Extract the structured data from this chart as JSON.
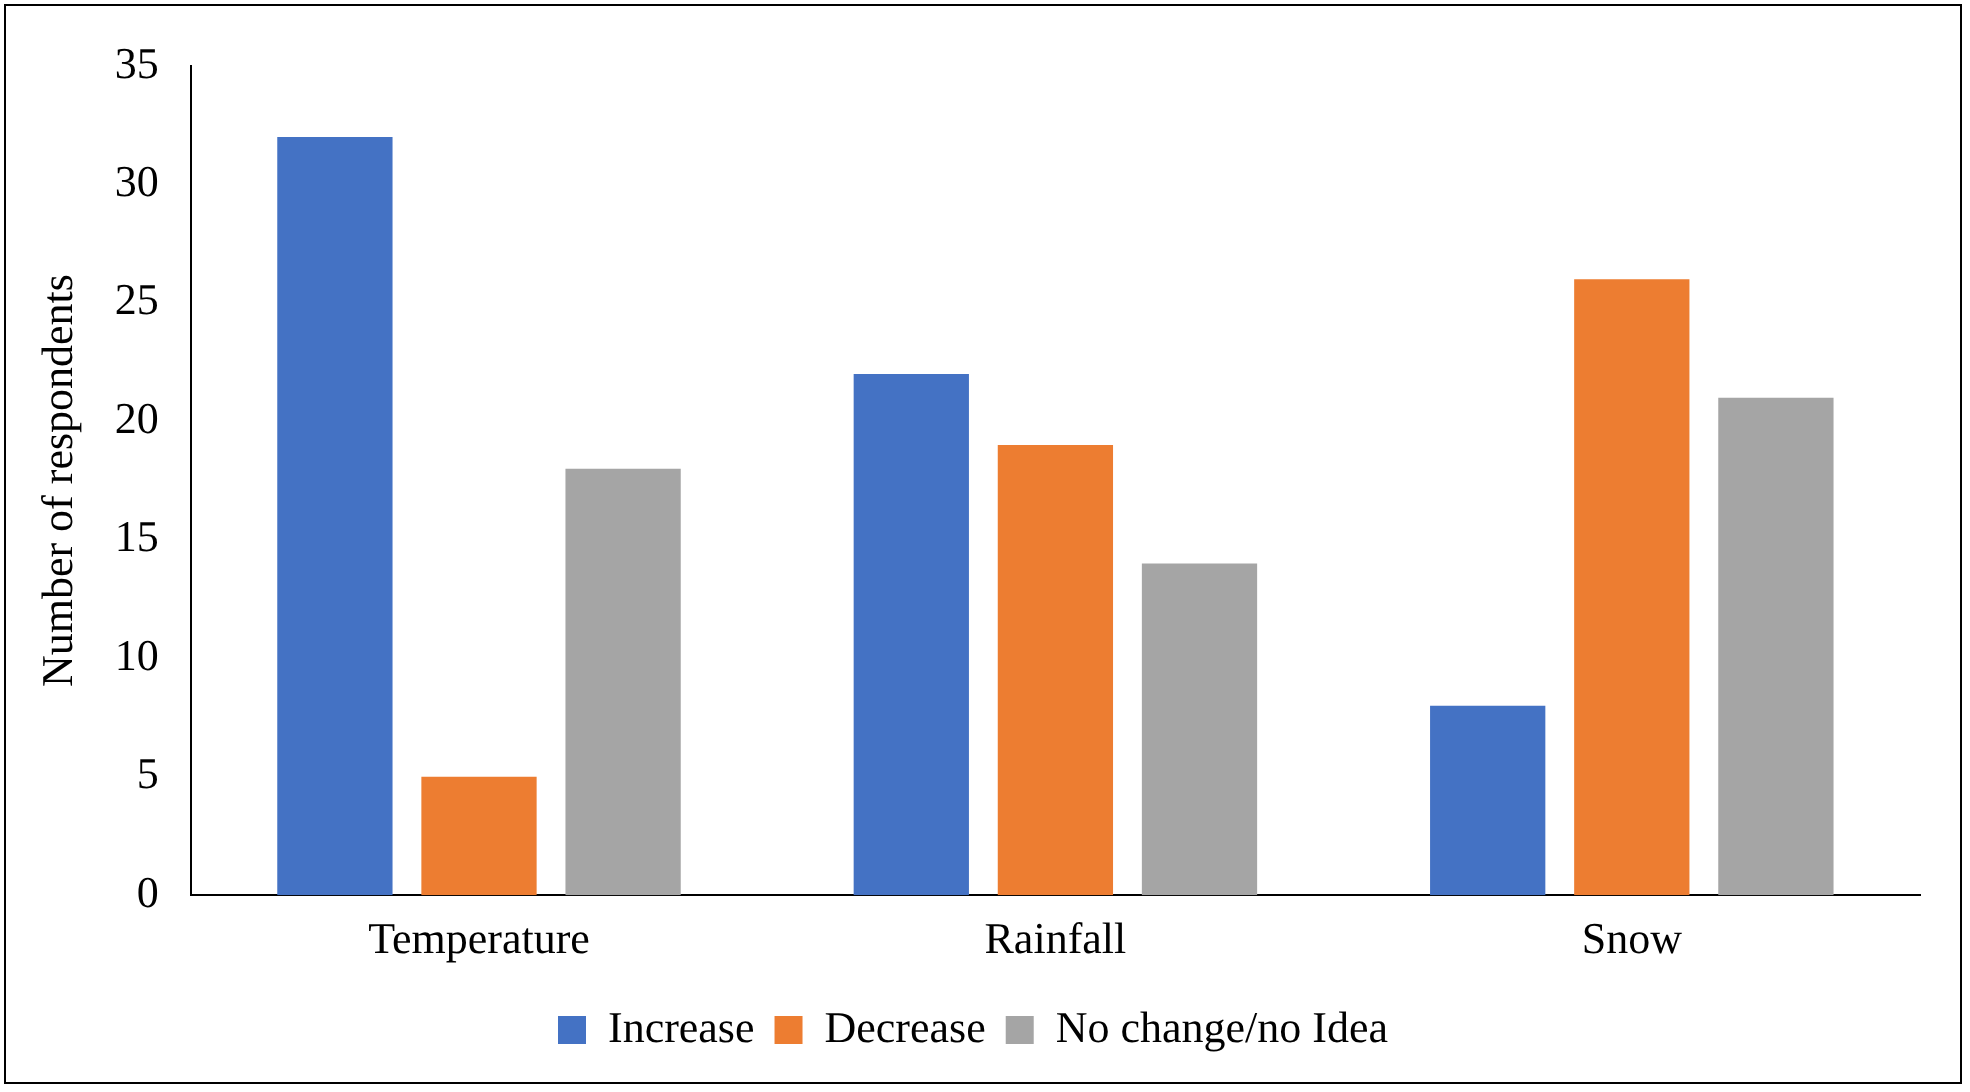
{
  "chart_data": {
    "type": "bar",
    "ylabel": "Number of respondents",
    "categories": [
      "Temperature",
      "Rainfall",
      "Snow"
    ],
    "series": [
      {
        "name": "Increase",
        "color": "#4472c4",
        "values": [
          32,
          22,
          8
        ]
      },
      {
        "name": "Decrease",
        "color": "#ed7d31",
        "values": [
          5,
          19,
          26
        ]
      },
      {
        "name": "No change/no Idea",
        "color": "#a5a5a5",
        "values": [
          18,
          14,
          21
        ]
      }
    ],
    "ylim": [
      0,
      35
    ],
    "yticks": [
      0,
      5,
      10,
      15,
      20,
      25,
      30,
      35
    ],
    "grid": false,
    "legend": "bottom"
  }
}
